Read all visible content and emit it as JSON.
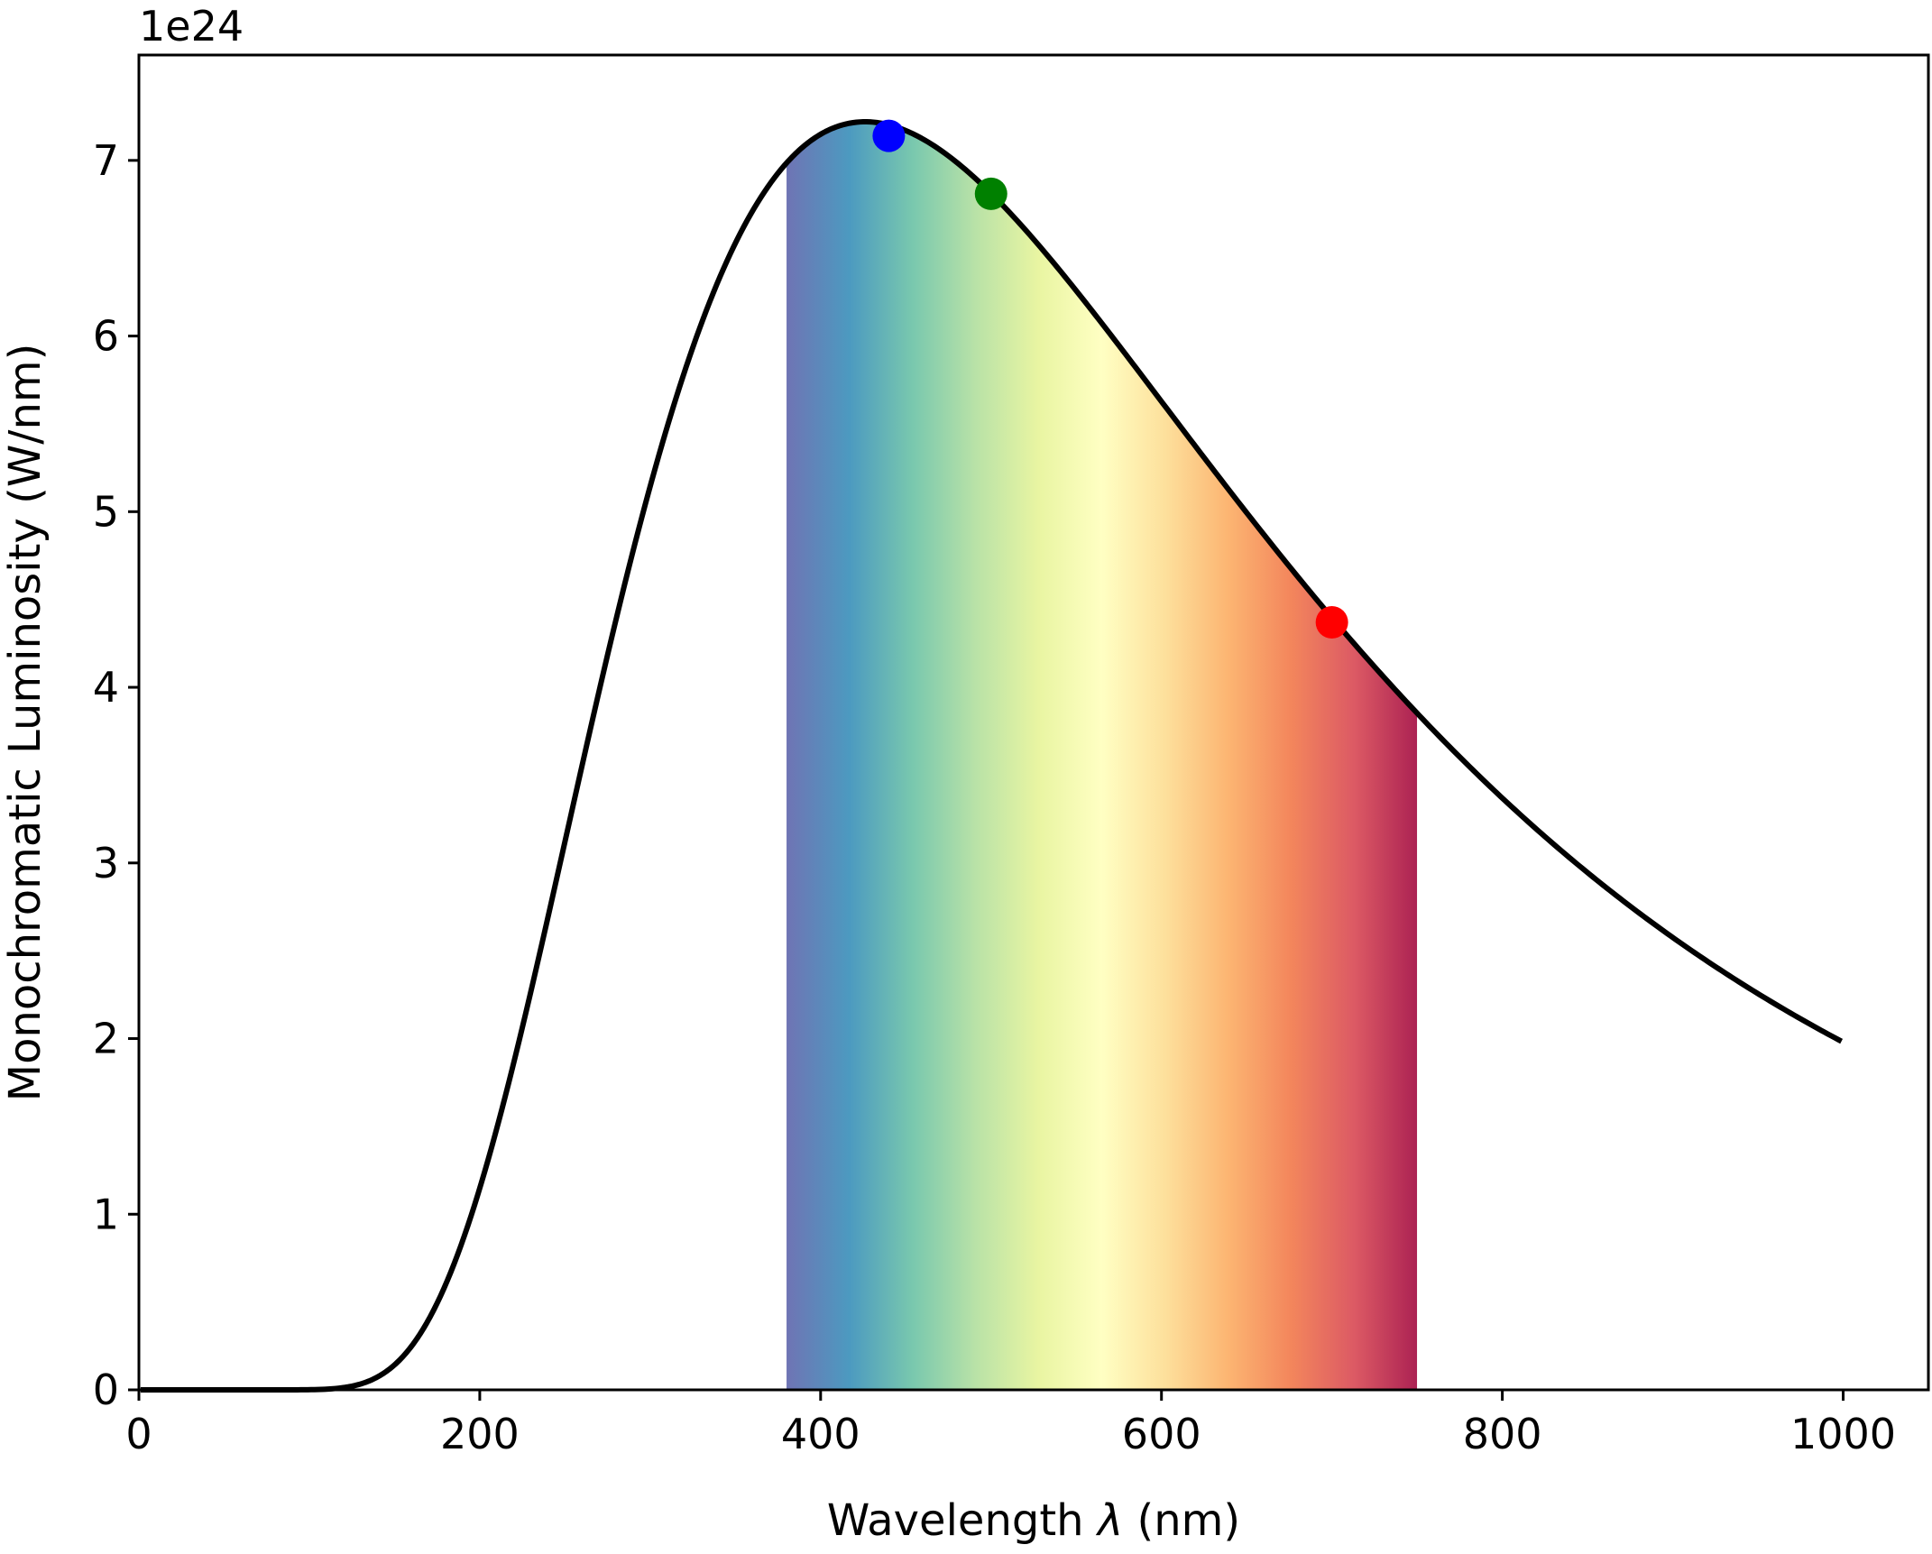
{
  "chart_data": {
    "type": "line",
    "title": "",
    "xlabel": "Wavelength",
    "xlabel_symbol": "λ",
    "xlabel_unit": "(nm)",
    "ylabel": "Monochromatic Luminosity (W/nm)",
    "y_offset_text": "1e24",
    "y_scale_factor": 1e+24,
    "xlim": [
      0,
      1050
    ],
    "ylim": [
      0,
      7.6
    ],
    "xticks": [
      0,
      200,
      400,
      600,
      800,
      1000
    ],
    "xtick_labels": [
      "0",
      "200",
      "400",
      "600",
      "800",
      "1000"
    ],
    "yticks": [
      0,
      1,
      2,
      3,
      4,
      5,
      6,
      7
    ],
    "ytick_labels": [
      "0",
      "1",
      "2",
      "3",
      "4",
      "5",
      "6",
      "7"
    ],
    "grid": false,
    "series": [
      {
        "color": "#000000",
        "curve": "planck",
        "x_range": [
          1,
          1000
        ],
        "temperature_k": 6800,
        "peak": {
          "x": 425,
          "y": 7.22
        }
      }
    ],
    "visible_band": {
      "x_range": [
        380,
        750
      ],
      "colormap": "Spectral_r",
      "colors": [
        "#6f74b4",
        "#4c9ac0",
        "#79c8ae",
        "#b9e2a7",
        "#e9f5a2",
        "#ffffc3",
        "#fde09c",
        "#fcb572",
        "#f3865c",
        "#dc5a64",
        "#ac2253"
      ]
    },
    "markers": [
      {
        "x": 440,
        "y": 7.14,
        "color": "#0000ff"
      },
      {
        "x": 500,
        "y": 6.81,
        "color": "#008000"
      },
      {
        "x": 700,
        "y": 4.37,
        "color": "#ff0000"
      }
    ]
  }
}
